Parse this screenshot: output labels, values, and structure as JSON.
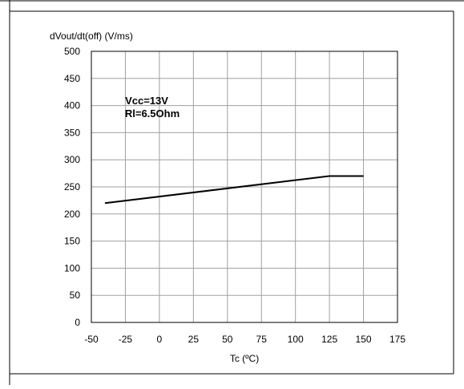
{
  "chart_data": {
    "type": "line",
    "title": "",
    "ylabel": "dVout/dt(off) (V/ms)",
    "xlabel": "Tc (ºC)",
    "xlim": [
      -50,
      175
    ],
    "ylim": [
      0,
      500
    ],
    "x_ticks": [
      -50,
      -25,
      0,
      25,
      50,
      75,
      100,
      125,
      150,
      175
    ],
    "y_ticks": [
      0,
      50,
      100,
      150,
      200,
      250,
      300,
      350,
      400,
      450,
      500
    ],
    "x_tick_labels": [
      "-50",
      "-25",
      "0",
      "25",
      "50",
      "75",
      "100",
      "125",
      "150",
      "175"
    ],
    "y_tick_labels": [
      "0",
      "50",
      "100",
      "150",
      "200",
      "250",
      "300",
      "350",
      "400",
      "450",
      "500"
    ],
    "grid": true,
    "annotation": [
      "Vcc=13V",
      "Rl=6.5Ohm"
    ],
    "series": [
      {
        "x": [
          -40,
          125,
          150
        ],
        "y": [
          220,
          270,
          270
        ]
      }
    ]
  }
}
